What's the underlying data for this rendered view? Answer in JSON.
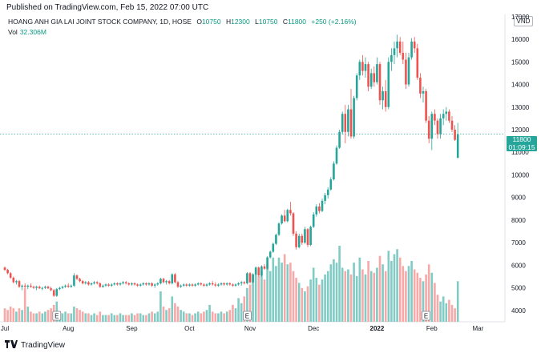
{
  "published": "Published on TradingView.com, Feb 15, 2022 07:00 UTC",
  "legend": {
    "title": "HOANG ANH GIA LAI JOINT STOCK COMPANY, 1D, HOSE",
    "o_label": "O",
    "o_value": "10750",
    "h_label": "H",
    "h_value": "12300",
    "l_label": "L",
    "l_value": "10750",
    "c_label": "C",
    "c_value": "11800",
    "change": "+250 (+2.16%)"
  },
  "volume": {
    "label": "Vol",
    "value": "32.306M"
  },
  "currency": "VND",
  "price_tag": {
    "price": "11800",
    "countdown": "01:09:15"
  },
  "footer": {
    "brand": "TradingView"
  },
  "colors": {
    "up": "#26a69a",
    "down": "#ef5350",
    "vol_up": "#80cbc4",
    "vol_down": "#f7a9a7"
  },
  "chart_data": {
    "type": "candlestick",
    "y_ticks": [
      "17000",
      "16000",
      "15000",
      "14000",
      "13000",
      "12000",
      "11000",
      "10000",
      "9000",
      "8000",
      "7000",
      "6000",
      "5000",
      "4000"
    ],
    "ylim": [
      3500,
      17100
    ],
    "x_ticks": [
      {
        "label": "Jul",
        "i": 0
      },
      {
        "label": "Aug",
        "i": 22
      },
      {
        "label": "Sep",
        "i": 44
      },
      {
        "label": "Oct",
        "i": 64
      },
      {
        "label": "Nov",
        "i": 85
      },
      {
        "label": "Dec",
        "i": 107
      },
      {
        "label": "2022",
        "i": 129
      },
      {
        "label": "Feb",
        "i": 148
      },
      {
        "label": "Mar",
        "i": 164
      }
    ],
    "earnings_markers": [
      {
        "label": "E",
        "i": 18
      },
      {
        "label": "E",
        "i": 84
      },
      {
        "label": "E",
        "i": 146
      }
    ],
    "last_price": 11800,
    "series": [
      {
        "o": 5900,
        "h": 5950,
        "l": 5750,
        "c": 5800,
        "v": 0.8
      },
      {
        "o": 5800,
        "h": 5850,
        "l": 5600,
        "c": 5650,
        "v": 0.7
      },
      {
        "o": 5650,
        "h": 5700,
        "l": 5400,
        "c": 5450,
        "v": 0.9
      },
      {
        "o": 5450,
        "h": 5500,
        "l": 5200,
        "c": 5250,
        "v": 0.8
      },
      {
        "o": 5250,
        "h": 5350,
        "l": 5150,
        "c": 5300,
        "v": 0.6
      },
      {
        "o": 5300,
        "h": 5350,
        "l": 5000,
        "c": 5050,
        "v": 0.8
      },
      {
        "o": 5050,
        "h": 5150,
        "l": 4900,
        "c": 5100,
        "v": 0.7
      },
      {
        "o": 5100,
        "h": 5200,
        "l": 5000,
        "c": 5050,
        "v": 2.0
      },
      {
        "o": 5050,
        "h": 5150,
        "l": 4950,
        "c": 5100,
        "v": 0.9
      },
      {
        "o": 5100,
        "h": 5200,
        "l": 5000,
        "c": 5050,
        "v": 0.6
      },
      {
        "o": 5050,
        "h": 5100,
        "l": 4950,
        "c": 5000,
        "v": 0.5
      },
      {
        "o": 5000,
        "h": 5100,
        "l": 4900,
        "c": 5050,
        "v": 0.5
      },
      {
        "o": 5050,
        "h": 5100,
        "l": 4950,
        "c": 4980,
        "v": 0.6
      },
      {
        "o": 4980,
        "h": 5050,
        "l": 4900,
        "c": 5000,
        "v": 0.5
      },
      {
        "o": 5000,
        "h": 5100,
        "l": 4950,
        "c": 5050,
        "v": 0.6
      },
      {
        "o": 5050,
        "h": 5100,
        "l": 4950,
        "c": 4980,
        "v": 0.7
      },
      {
        "o": 4980,
        "h": 5050,
        "l": 4850,
        "c": 4900,
        "v": 0.8
      },
      {
        "o": 4900,
        "h": 4950,
        "l": 4600,
        "c": 4650,
        "v": 1.0
      },
      {
        "o": 4650,
        "h": 5000,
        "l": 4600,
        "c": 4950,
        "v": 1.2
      },
      {
        "o": 4950,
        "h": 5050,
        "l": 4900,
        "c": 5000,
        "v": 0.6
      },
      {
        "o": 5000,
        "h": 5100,
        "l": 4950,
        "c": 5050,
        "v": 0.5
      },
      {
        "o": 5050,
        "h": 5150,
        "l": 5000,
        "c": 5100,
        "v": 0.6
      },
      {
        "o": 5100,
        "h": 5200,
        "l": 5000,
        "c": 5050,
        "v": 0.5
      },
      {
        "o": 5050,
        "h": 5150,
        "l": 5000,
        "c": 5100,
        "v": 0.5
      },
      {
        "o": 5100,
        "h": 5650,
        "l": 5050,
        "c": 5550,
        "v": 0.9
      },
      {
        "o": 5550,
        "h": 5600,
        "l": 5350,
        "c": 5400,
        "v": 0.8
      },
      {
        "o": 5400,
        "h": 5450,
        "l": 5250,
        "c": 5300,
        "v": 0.7
      },
      {
        "o": 5300,
        "h": 5350,
        "l": 5150,
        "c": 5200,
        "v": 0.6
      },
      {
        "o": 5200,
        "h": 5300,
        "l": 5150,
        "c": 5250,
        "v": 0.5
      },
      {
        "o": 5250,
        "h": 5300,
        "l": 5100,
        "c": 5150,
        "v": 0.5
      },
      {
        "o": 5150,
        "h": 5250,
        "l": 5100,
        "c": 5200,
        "v": 0.4
      },
      {
        "o": 5200,
        "h": 5300,
        "l": 5150,
        "c": 5250,
        "v": 0.5
      },
      {
        "o": 5250,
        "h": 5300,
        "l": 5150,
        "c": 5200,
        "v": 0.4
      },
      {
        "o": 5200,
        "h": 5250,
        "l": 5000,
        "c": 5050,
        "v": 0.6
      },
      {
        "o": 5050,
        "h": 5150,
        "l": 5000,
        "c": 5100,
        "v": 0.4
      },
      {
        "o": 5100,
        "h": 5200,
        "l": 5050,
        "c": 5150,
        "v": 0.4
      },
      {
        "o": 5150,
        "h": 5200,
        "l": 5050,
        "c": 5100,
        "v": 0.4
      },
      {
        "o": 5100,
        "h": 5200,
        "l": 5050,
        "c": 5150,
        "v": 0.5
      },
      {
        "o": 5150,
        "h": 5250,
        "l": 5100,
        "c": 5200,
        "v": 0.4
      },
      {
        "o": 5200,
        "h": 5250,
        "l": 5100,
        "c": 5150,
        "v": 0.4
      },
      {
        "o": 5150,
        "h": 5250,
        "l": 5100,
        "c": 5200,
        "v": 0.5
      },
      {
        "o": 5200,
        "h": 5300,
        "l": 5150,
        "c": 5250,
        "v": 0.4
      },
      {
        "o": 5250,
        "h": 5300,
        "l": 5150,
        "c": 5200,
        "v": 0.4
      },
      {
        "o": 5200,
        "h": 5250,
        "l": 5100,
        "c": 5150,
        "v": 0.4
      },
      {
        "o": 5150,
        "h": 5250,
        "l": 5100,
        "c": 5200,
        "v": 0.5
      },
      {
        "o": 5200,
        "h": 5250,
        "l": 5100,
        "c": 5150,
        "v": 0.4
      },
      {
        "o": 5150,
        "h": 5200,
        "l": 5050,
        "c": 5100,
        "v": 0.5
      },
      {
        "o": 5100,
        "h": 5200,
        "l": 5050,
        "c": 5150,
        "v": 0.5
      },
      {
        "o": 5150,
        "h": 5250,
        "l": 5100,
        "c": 5200,
        "v": 0.4
      },
      {
        "o": 5200,
        "h": 5250,
        "l": 5100,
        "c": 5150,
        "v": 0.4
      },
      {
        "o": 5150,
        "h": 5250,
        "l": 5100,
        "c": 5200,
        "v": 0.5
      },
      {
        "o": 5200,
        "h": 5250,
        "l": 5050,
        "c": 5100,
        "v": 0.6
      },
      {
        "o": 5100,
        "h": 5200,
        "l": 5000,
        "c": 5150,
        "v": 0.5
      },
      {
        "o": 5150,
        "h": 5250,
        "l": 5100,
        "c": 5200,
        "v": 0.6
      },
      {
        "o": 5200,
        "h": 5450,
        "l": 5150,
        "c": 5400,
        "v": 1.8
      },
      {
        "o": 5400,
        "h": 5450,
        "l": 5200,
        "c": 5250,
        "v": 0.9
      },
      {
        "o": 5250,
        "h": 5350,
        "l": 5150,
        "c": 5300,
        "v": 0.7
      },
      {
        "o": 5300,
        "h": 5350,
        "l": 5150,
        "c": 5200,
        "v": 0.8
      },
      {
        "o": 5200,
        "h": 5650,
        "l": 5150,
        "c": 5600,
        "v": 1.5
      },
      {
        "o": 5600,
        "h": 5650,
        "l": 5200,
        "c": 5250,
        "v": 1.1
      },
      {
        "o": 5250,
        "h": 5300,
        "l": 5000,
        "c": 5050,
        "v": 0.9
      },
      {
        "o": 5050,
        "h": 5150,
        "l": 5000,
        "c": 5100,
        "v": 0.7
      },
      {
        "o": 5100,
        "h": 5200,
        "l": 5050,
        "c": 5150,
        "v": 0.6
      },
      {
        "o": 5150,
        "h": 5200,
        "l": 5050,
        "c": 5100,
        "v": 0.5
      },
      {
        "o": 5100,
        "h": 5200,
        "l": 5050,
        "c": 5150,
        "v": 0.5
      },
      {
        "o": 5150,
        "h": 5200,
        "l": 5050,
        "c": 5100,
        "v": 0.4
      },
      {
        "o": 5100,
        "h": 5200,
        "l": 5050,
        "c": 5150,
        "v": 0.5
      },
      {
        "o": 5150,
        "h": 5250,
        "l": 5100,
        "c": 5200,
        "v": 0.6
      },
      {
        "o": 5200,
        "h": 5250,
        "l": 5100,
        "c": 5150,
        "v": 0.5
      },
      {
        "o": 5150,
        "h": 5200,
        "l": 5050,
        "c": 5100,
        "v": 0.6
      },
      {
        "o": 5100,
        "h": 5200,
        "l": 5050,
        "c": 5150,
        "v": 0.7
      },
      {
        "o": 5150,
        "h": 5250,
        "l": 5100,
        "c": 5200,
        "v": 1.0
      },
      {
        "o": 5200,
        "h": 5300,
        "l": 5100,
        "c": 5150,
        "v": 0.6
      },
      {
        "o": 5150,
        "h": 5250,
        "l": 5050,
        "c": 5100,
        "v": 0.5
      },
      {
        "o": 5100,
        "h": 5200,
        "l": 5050,
        "c": 5150,
        "v": 0.5
      },
      {
        "o": 5150,
        "h": 5250,
        "l": 5100,
        "c": 5200,
        "v": 0.6
      },
      {
        "o": 5200,
        "h": 5250,
        "l": 5100,
        "c": 5150,
        "v": 0.5
      },
      {
        "o": 5150,
        "h": 5250,
        "l": 5100,
        "c": 5200,
        "v": 0.6
      },
      {
        "o": 5200,
        "h": 5250,
        "l": 5100,
        "c": 5150,
        "v": 0.7
      },
      {
        "o": 5150,
        "h": 5200,
        "l": 5050,
        "c": 5100,
        "v": 1.0
      },
      {
        "o": 5100,
        "h": 5200,
        "l": 5050,
        "c": 5150,
        "v": 0.8
      },
      {
        "o": 5150,
        "h": 5250,
        "l": 5100,
        "c": 5200,
        "v": 1.4
      },
      {
        "o": 5200,
        "h": 5300,
        "l": 5100,
        "c": 5250,
        "v": 1.1
      },
      {
        "o": 5250,
        "h": 5300,
        "l": 5150,
        "c": 5200,
        "v": 1.5
      },
      {
        "o": 5200,
        "h": 5700,
        "l": 5150,
        "c": 5650,
        "v": 2.0
      },
      {
        "o": 5650,
        "h": 5700,
        "l": 5200,
        "c": 5250,
        "v": 2.2
      },
      {
        "o": 5250,
        "h": 5650,
        "l": 5200,
        "c": 5600,
        "v": 2.8
      },
      {
        "o": 5600,
        "h": 5950,
        "l": 5550,
        "c": 5900,
        "v": 3.2
      },
      {
        "o": 5900,
        "h": 5950,
        "l": 5500,
        "c": 5550,
        "v": 2.7
      },
      {
        "o": 5550,
        "h": 6000,
        "l": 5500,
        "c": 5950,
        "v": 3.0
      },
      {
        "o": 5950,
        "h": 6050,
        "l": 5800,
        "c": 5850,
        "v": 2.5
      },
      {
        "o": 5850,
        "h": 6400,
        "l": 5800,
        "c": 6350,
        "v": 3.5
      },
      {
        "o": 6350,
        "h": 6650,
        "l": 6300,
        "c": 6600,
        "v": 3.0
      },
      {
        "o": 6600,
        "h": 7000,
        "l": 6550,
        "c": 6950,
        "v": 3.8
      },
      {
        "o": 6950,
        "h": 7400,
        "l": 6900,
        "c": 7350,
        "v": 3.3
      },
      {
        "o": 7350,
        "h": 7900,
        "l": 7300,
        "c": 7850,
        "v": 3.8
      },
      {
        "o": 7850,
        "h": 8250,
        "l": 7800,
        "c": 8200,
        "v": 3.5
      },
      {
        "o": 8200,
        "h": 8450,
        "l": 7900,
        "c": 7950,
        "v": 4.0
      },
      {
        "o": 7950,
        "h": 8500,
        "l": 7900,
        "c": 8450,
        "v": 3.4
      },
      {
        "o": 8450,
        "h": 8800,
        "l": 8200,
        "c": 8300,
        "v": 3.5
      },
      {
        "o": 8300,
        "h": 8350,
        "l": 7300,
        "c": 7400,
        "v": 3.0
      },
      {
        "o": 7400,
        "h": 7500,
        "l": 6700,
        "c": 6800,
        "v": 2.6
      },
      {
        "o": 6800,
        "h": 7400,
        "l": 6750,
        "c": 7300,
        "v": 2.3
      },
      {
        "o": 7300,
        "h": 7400,
        "l": 6900,
        "c": 7000,
        "v": 2.0
      },
      {
        "o": 7000,
        "h": 7700,
        "l": 6950,
        "c": 7600,
        "v": 1.8
      },
      {
        "o": 7600,
        "h": 7650,
        "l": 6800,
        "c": 6900,
        "v": 2.1
      },
      {
        "o": 6900,
        "h": 7750,
        "l": 6850,
        "c": 7700,
        "v": 2.5
      },
      {
        "o": 7700,
        "h": 8350,
        "l": 7650,
        "c": 8250,
        "v": 3.2
      },
      {
        "o": 8250,
        "h": 8700,
        "l": 8150,
        "c": 8600,
        "v": 2.6
      },
      {
        "o": 8600,
        "h": 8750,
        "l": 8300,
        "c": 8400,
        "v": 2.2
      },
      {
        "o": 8400,
        "h": 8950,
        "l": 8350,
        "c": 8850,
        "v": 2.5
      },
      {
        "o": 8850,
        "h": 9200,
        "l": 8700,
        "c": 9100,
        "v": 2.8
      },
      {
        "o": 9100,
        "h": 9450,
        "l": 8950,
        "c": 9350,
        "v": 3.0
      },
      {
        "o": 9350,
        "h": 9900,
        "l": 9300,
        "c": 9800,
        "v": 3.4
      },
      {
        "o": 9800,
        "h": 10600,
        "l": 9750,
        "c": 10500,
        "v": 3.7
      },
      {
        "o": 10500,
        "h": 11300,
        "l": 10450,
        "c": 11200,
        "v": 3.5
      },
      {
        "o": 11200,
        "h": 12000,
        "l": 11150,
        "c": 11900,
        "v": 4.5
      },
      {
        "o": 11900,
        "h": 12800,
        "l": 11800,
        "c": 12700,
        "v": 3.2
      },
      {
        "o": 12700,
        "h": 13100,
        "l": 11400,
        "c": 11900,
        "v": 3.0
      },
      {
        "o": 11900,
        "h": 13100,
        "l": 11700,
        "c": 12900,
        "v": 3.1
      },
      {
        "o": 12900,
        "h": 13800,
        "l": 11600,
        "c": 11700,
        "v": 2.8
      },
      {
        "o": 11700,
        "h": 13500,
        "l": 11600,
        "c": 13400,
        "v": 3.5
      },
      {
        "o": 13400,
        "h": 14500,
        "l": 13300,
        "c": 14400,
        "v": 2.7
      },
      {
        "o": 14400,
        "h": 15100,
        "l": 14200,
        "c": 15000,
        "v": 3.8
      },
      {
        "o": 15000,
        "h": 15300,
        "l": 14400,
        "c": 14600,
        "v": 3.1
      },
      {
        "o": 14600,
        "h": 15200,
        "l": 14300,
        "c": 14900,
        "v": 2.8
      },
      {
        "o": 14900,
        "h": 15000,
        "l": 13700,
        "c": 13900,
        "v": 3.6
      },
      {
        "o": 13900,
        "h": 14700,
        "l": 13800,
        "c": 14500,
        "v": 3.0
      },
      {
        "o": 14500,
        "h": 14800,
        "l": 13900,
        "c": 14100,
        "v": 2.9
      },
      {
        "o": 14100,
        "h": 15200,
        "l": 14000,
        "c": 14900,
        "v": 3.2
      },
      {
        "o": 14900,
        "h": 15000,
        "l": 13100,
        "c": 13300,
        "v": 3.9
      },
      {
        "o": 13300,
        "h": 13900,
        "l": 12900,
        "c": 13700,
        "v": 3.4
      },
      {
        "o": 13700,
        "h": 14200,
        "l": 12800,
        "c": 13000,
        "v": 3.0
      },
      {
        "o": 13000,
        "h": 15200,
        "l": 12900,
        "c": 15000,
        "v": 4.2
      },
      {
        "o": 15000,
        "h": 15600,
        "l": 14600,
        "c": 15300,
        "v": 3.6
      },
      {
        "o": 15300,
        "h": 15900,
        "l": 14900,
        "c": 15600,
        "v": 4.0
      },
      {
        "o": 15600,
        "h": 16200,
        "l": 15200,
        "c": 15900,
        "v": 4.3
      },
      {
        "o": 15900,
        "h": 16100,
        "l": 15300,
        "c": 15400,
        "v": 3.8
      },
      {
        "o": 15400,
        "h": 15900,
        "l": 14900,
        "c": 15100,
        "v": 3.3
      },
      {
        "o": 15100,
        "h": 15400,
        "l": 13800,
        "c": 14000,
        "v": 3.0
      },
      {
        "o": 14000,
        "h": 15400,
        "l": 13900,
        "c": 15200,
        "v": 3.3
      },
      {
        "o": 15200,
        "h": 16050,
        "l": 15100,
        "c": 15900,
        "v": 3.6
      },
      {
        "o": 15900,
        "h": 16100,
        "l": 15400,
        "c": 15600,
        "v": 3.1
      },
      {
        "o": 15600,
        "h": 15800,
        "l": 14200,
        "c": 14300,
        "v": 2.9
      },
      {
        "o": 14300,
        "h": 14500,
        "l": 13400,
        "c": 13600,
        "v": 2.6
      },
      {
        "o": 13600,
        "h": 13900,
        "l": 13200,
        "c": 13700,
        "v": 2.4
      },
      {
        "o": 13700,
        "h": 13800,
        "l": 12300,
        "c": 12400,
        "v": 2.8
      },
      {
        "o": 12400,
        "h": 12600,
        "l": 11400,
        "c": 11600,
        "v": 3.4
      },
      {
        "o": 11600,
        "h": 12800,
        "l": 11100,
        "c": 12700,
        "v": 2.9
      },
      {
        "o": 12700,
        "h": 12900,
        "l": 12200,
        "c": 12400,
        "v": 2.3
      },
      {
        "o": 12400,
        "h": 12500,
        "l": 11600,
        "c": 11800,
        "v": 1.6
      },
      {
        "o": 11800,
        "h": 12700,
        "l": 11600,
        "c": 12500,
        "v": 1.2
      },
      {
        "o": 12500,
        "h": 12900,
        "l": 12200,
        "c": 12700,
        "v": 1.5
      },
      {
        "o": 12700,
        "h": 13000,
        "l": 12400,
        "c": 12800,
        "v": 1.1
      },
      {
        "o": 12800,
        "h": 12900,
        "l": 12300,
        "c": 12400,
        "v": 1.3
      },
      {
        "o": 12400,
        "h": 12600,
        "l": 11900,
        "c": 12000,
        "v": 1.0
      },
      {
        "o": 12000,
        "h": 12200,
        "l": 11500,
        "c": 11550,
        "v": 0.8
      },
      {
        "o": 10750,
        "h": 12300,
        "l": 10750,
        "c": 11800,
        "v": 2.4
      }
    ]
  }
}
